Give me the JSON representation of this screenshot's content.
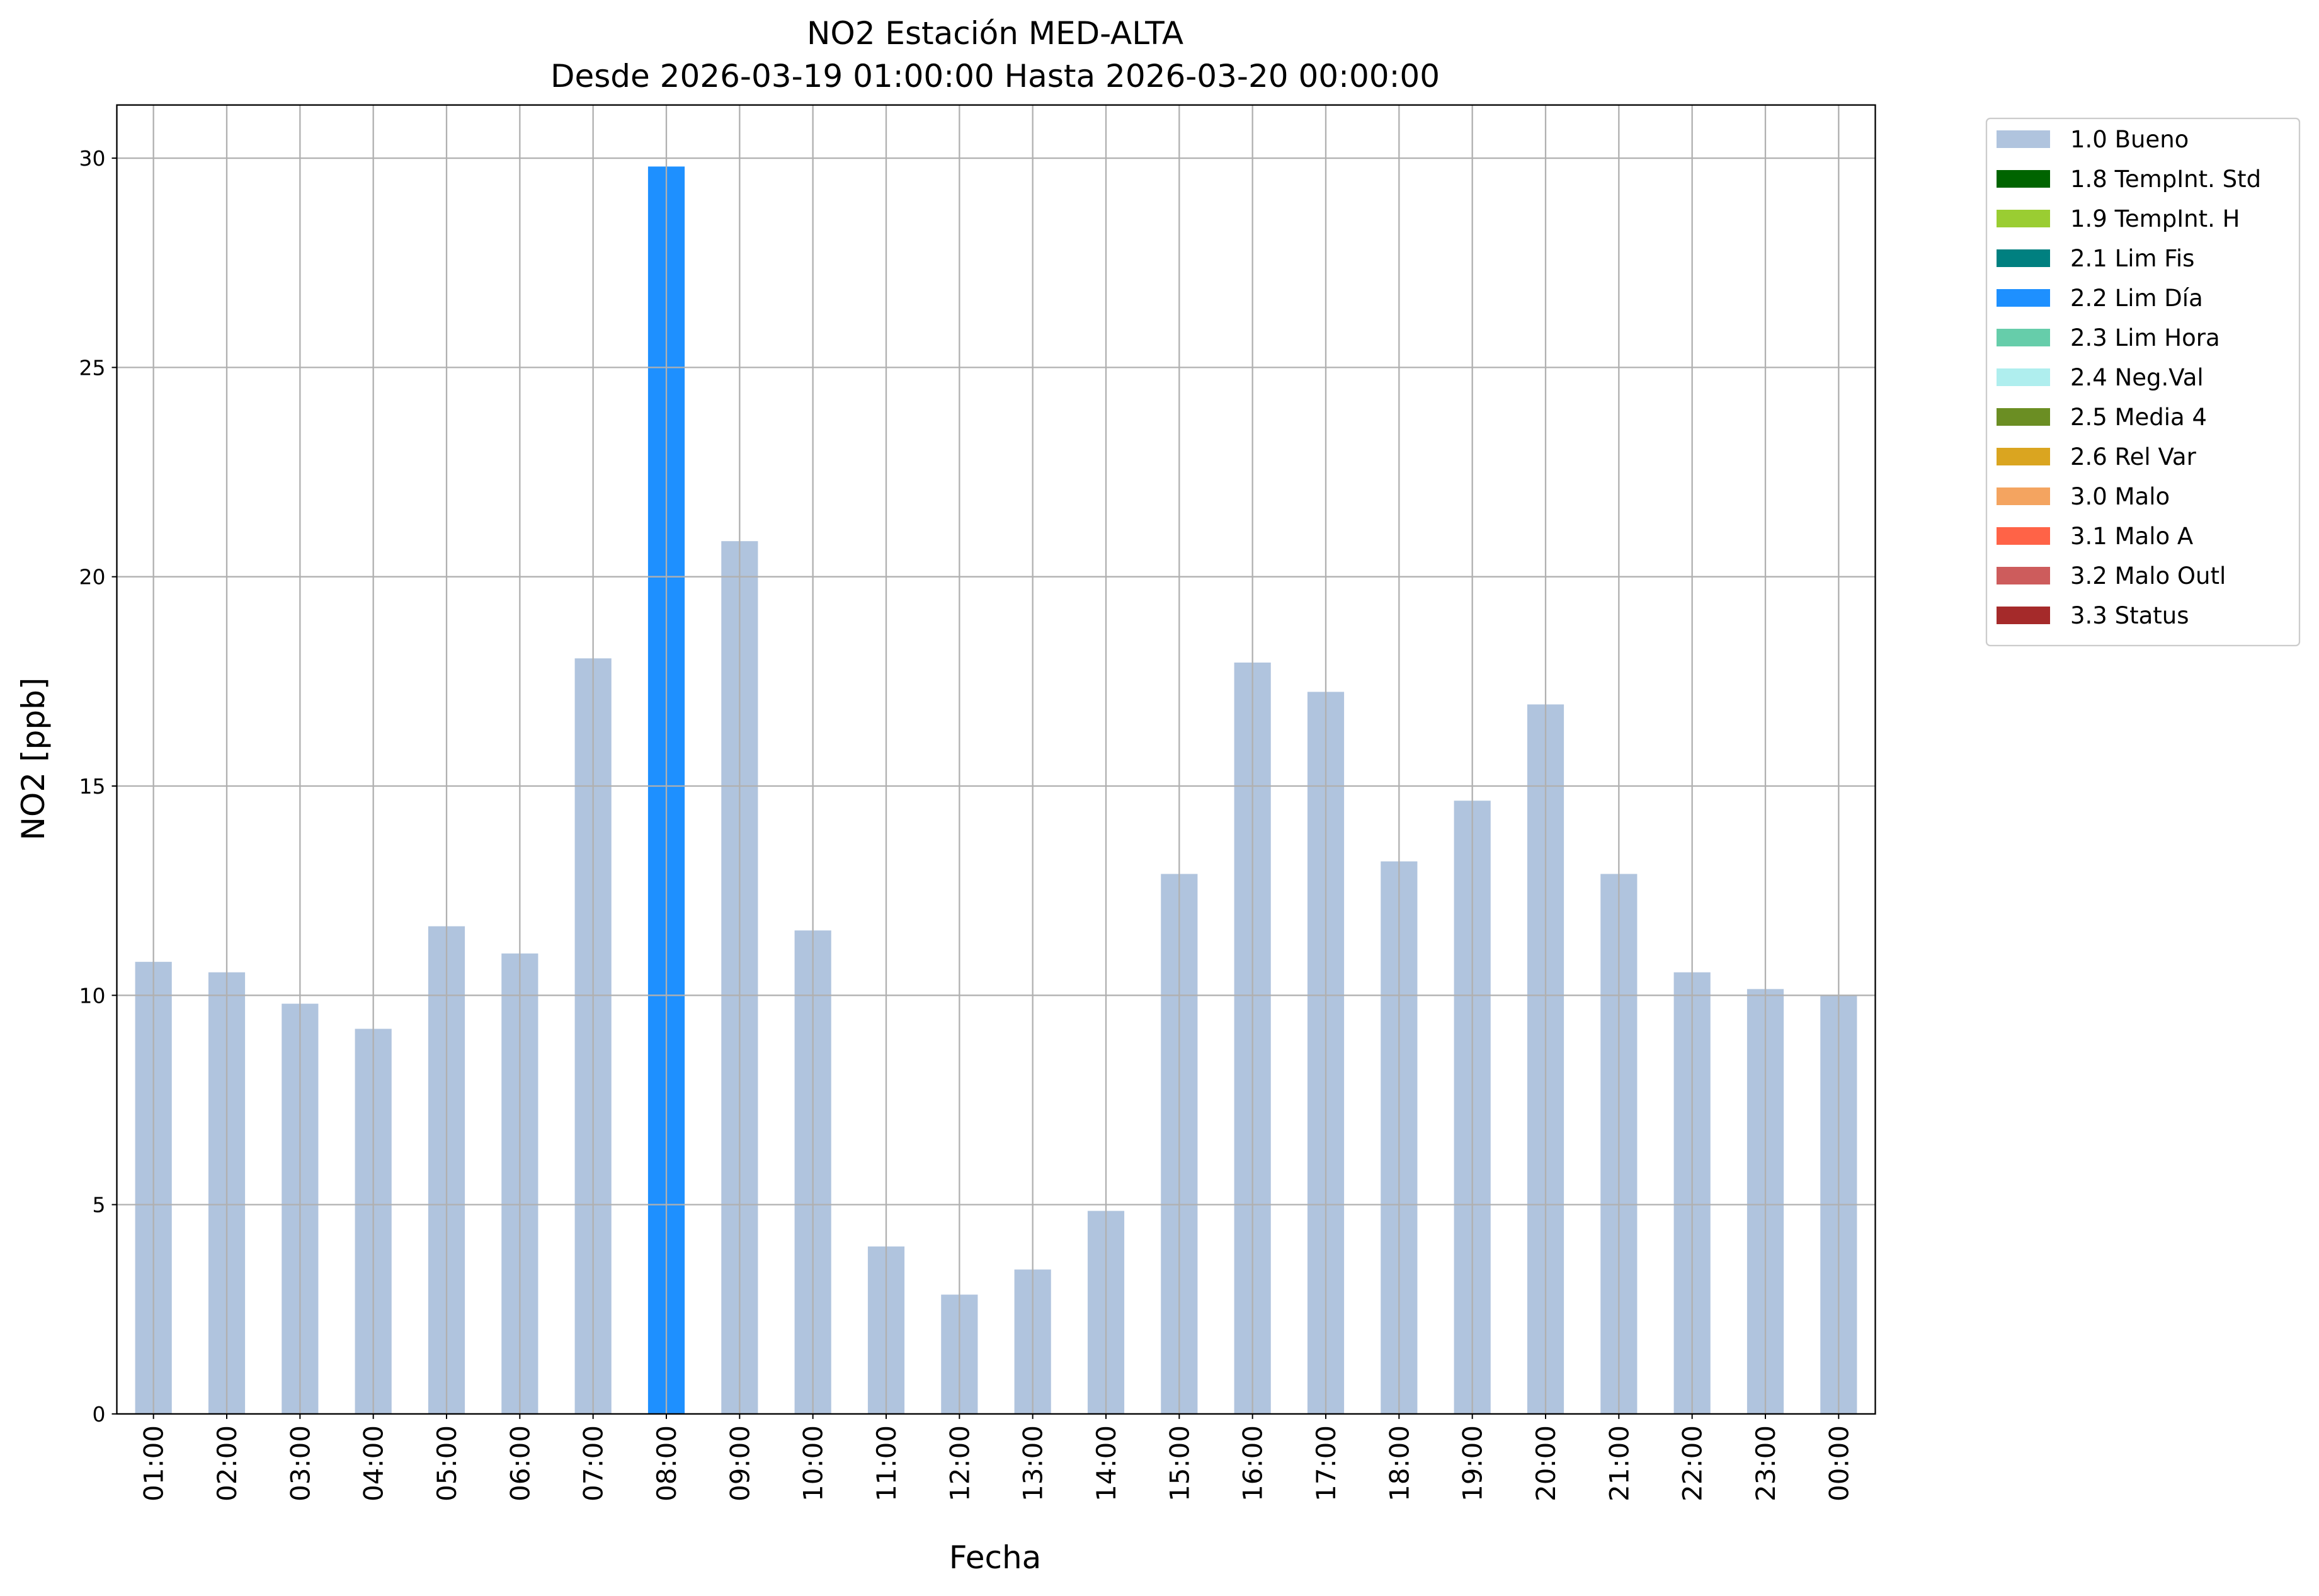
{
  "chart_data": {
    "type": "stacked_bar",
    "title": "NO2 Estación MED-ALTA",
    "subtitle": "Desde 2026-03-19 01:00:00 Hasta 2026-03-20 00:00:00",
    "x_label": "Fecha",
    "y_label": "NO2 [ppb]",
    "categories": [
      "01:00",
      "02:00",
      "03:00",
      "04:00",
      "05:00",
      "06:00",
      "07:00",
      "08:00",
      "09:00",
      "10:00",
      "11:00",
      "12:00",
      "13:00",
      "14:00",
      "15:00",
      "16:00",
      "17:00",
      "18:00",
      "19:00",
      "20:00",
      "21:00",
      "22:00",
      "23:00",
      "00:00"
    ],
    "series": [
      {
        "name": "1.0 Bueno",
        "color": "#b0c4de",
        "values": [
          10.8,
          10.55,
          9.8,
          9.2,
          11.65,
          11.0,
          18.05,
          null,
          20.85,
          11.55,
          4.0,
          2.85,
          3.45,
          4.85,
          12.9,
          17.95,
          17.25,
          13.2,
          14.65,
          16.95,
          12.9,
          10.55,
          10.15,
          10.0
        ]
      },
      {
        "name": "1.8 TempInt. Std",
        "color": "#006400",
        "values": [
          null,
          null,
          null,
          null,
          null,
          null,
          null,
          null,
          null,
          null,
          null,
          null,
          null,
          null,
          null,
          null,
          null,
          null,
          null,
          null,
          null,
          null,
          null,
          null
        ]
      },
      {
        "name": "1.9 TempInt. H",
        "color": "#9acd32",
        "values": [
          null,
          null,
          null,
          null,
          null,
          null,
          null,
          null,
          null,
          null,
          null,
          null,
          null,
          null,
          null,
          null,
          null,
          null,
          null,
          null,
          null,
          null,
          null,
          null
        ]
      },
      {
        "name": "2.1 Lim Fis",
        "color": "#008080",
        "values": [
          null,
          null,
          null,
          null,
          null,
          null,
          null,
          null,
          null,
          null,
          null,
          null,
          null,
          null,
          null,
          null,
          null,
          null,
          null,
          null,
          null,
          null,
          null,
          null
        ]
      },
      {
        "name": "2.2 Lim Día",
        "color": "#1e90ff",
        "values": [
          null,
          null,
          null,
          null,
          null,
          null,
          null,
          29.8,
          null,
          null,
          null,
          null,
          null,
          null,
          null,
          null,
          null,
          null,
          null,
          null,
          null,
          null,
          null,
          null
        ]
      },
      {
        "name": "2.3 Lim Hora",
        "color": "#66cdaa",
        "values": [
          null,
          null,
          null,
          null,
          null,
          null,
          null,
          null,
          null,
          null,
          null,
          null,
          null,
          null,
          null,
          null,
          null,
          null,
          null,
          null,
          null,
          null,
          null,
          null
        ]
      },
      {
        "name": "2.4 Neg.Val",
        "color": "#afeeee",
        "values": [
          null,
          null,
          null,
          null,
          null,
          null,
          null,
          null,
          null,
          null,
          null,
          null,
          null,
          null,
          null,
          null,
          null,
          null,
          null,
          null,
          null,
          null,
          null,
          null
        ]
      },
      {
        "name": "2.5 Media 4",
        "color": "#6b8e23",
        "values": [
          null,
          null,
          null,
          null,
          null,
          null,
          null,
          null,
          null,
          null,
          null,
          null,
          null,
          null,
          null,
          null,
          null,
          null,
          null,
          null,
          null,
          null,
          null,
          null
        ]
      },
      {
        "name": "2.6 Rel Var",
        "color": "#daa520",
        "values": [
          null,
          null,
          null,
          null,
          null,
          null,
          null,
          null,
          null,
          null,
          null,
          null,
          null,
          null,
          null,
          null,
          null,
          null,
          null,
          null,
          null,
          null,
          null,
          null
        ]
      },
      {
        "name": "3.0 Malo",
        "color": "#f4a460",
        "values": [
          null,
          null,
          null,
          null,
          null,
          null,
          null,
          null,
          null,
          null,
          null,
          null,
          null,
          null,
          null,
          null,
          null,
          null,
          null,
          null,
          null,
          null,
          null,
          null
        ]
      },
      {
        "name": "3.1 Malo A",
        "color": "#ff6347",
        "values": [
          null,
          null,
          null,
          null,
          null,
          null,
          null,
          null,
          null,
          null,
          null,
          null,
          null,
          null,
          null,
          null,
          null,
          null,
          null,
          null,
          null,
          null,
          null,
          null
        ]
      },
      {
        "name": "3.2 Malo Outl",
        "color": "#cd5c5c",
        "values": [
          null,
          null,
          null,
          null,
          null,
          null,
          null,
          null,
          null,
          null,
          null,
          null,
          null,
          null,
          null,
          null,
          null,
          null,
          null,
          null,
          null,
          null,
          null,
          null
        ]
      },
      {
        "name": "3.3 Status",
        "color": "#a52a2a",
        "values": [
          null,
          null,
          null,
          null,
          null,
          null,
          null,
          null,
          null,
          null,
          null,
          null,
          null,
          null,
          null,
          null,
          null,
          null,
          null,
          null,
          null,
          null,
          null,
          null
        ]
      }
    ],
    "ylim": [
      0,
      31.27
    ],
    "yticks": [
      0,
      5,
      10,
      15,
      20,
      25,
      30
    ],
    "grid": true,
    "legend": "outside-upper-right"
  }
}
